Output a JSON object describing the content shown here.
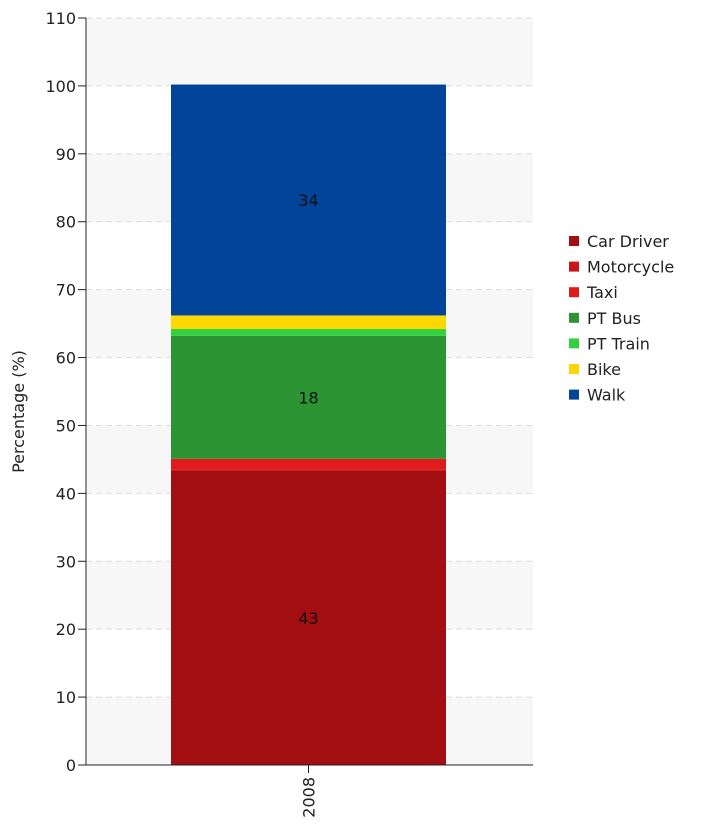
{
  "chart_data": {
    "type": "bar",
    "stacked": true,
    "categories": [
      "2008"
    ],
    "ylabel": "Percentage (%)",
    "xlabel": "",
    "ylim": [
      0,
      110
    ],
    "yticks": [
      0,
      10,
      20,
      30,
      40,
      50,
      60,
      70,
      80,
      90,
      100,
      110
    ],
    "grid": true,
    "legend_position": "right",
    "series": [
      {
        "name": "Car Driver",
        "values": [
          43.3
        ],
        "color": "#a30e12",
        "label": "43"
      },
      {
        "name": "Motorcycle",
        "values": [
          0.2
        ],
        "color": "#c8161b",
        "label": ""
      },
      {
        "name": "Taxi",
        "values": [
          1.6
        ],
        "color": "#e01b1b",
        "label": ""
      },
      {
        "name": "PT Bus",
        "values": [
          18.1
        ],
        "color": "#2c9433",
        "label": "18"
      },
      {
        "name": "PT Train",
        "values": [
          1.0
        ],
        "color": "#33d13f",
        "label": ""
      },
      {
        "name": "Bike",
        "values": [
          2.0
        ],
        "color": "#ffd700",
        "label": ""
      },
      {
        "name": "Walk",
        "values": [
          34.0
        ],
        "color": "#02449a",
        "label": "34"
      }
    ]
  }
}
